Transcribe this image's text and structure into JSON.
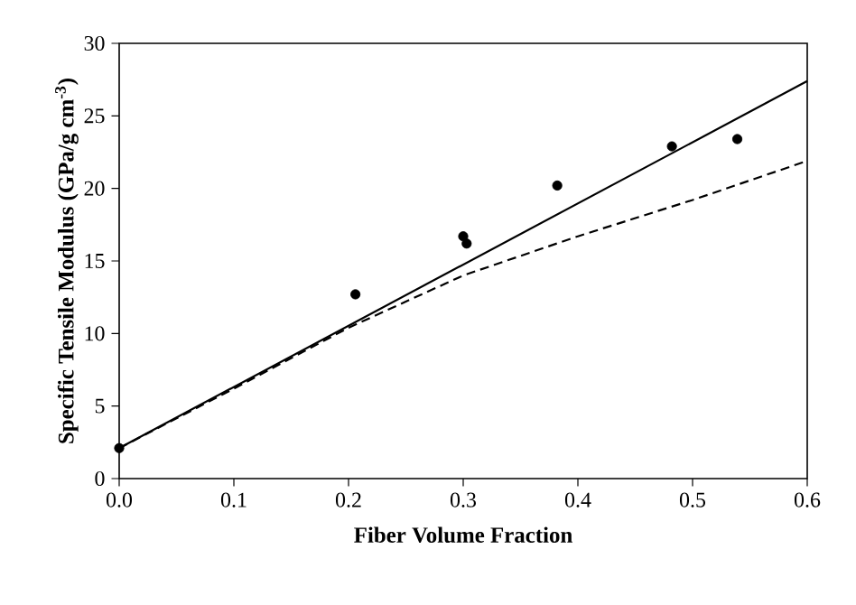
{
  "chart_data": {
    "type": "line",
    "xlabel": "Fiber Volume Fraction",
    "ylabel": "Specific Tensile Modulus (GPa/g cm$^{-3}$)",
    "xlim": [
      0,
      0.6
    ],
    "ylim": [
      0,
      30
    ],
    "xticks": [
      {
        "value": 0,
        "label": "0.0"
      },
      0.1,
      0.2,
      0.3,
      0.4,
      0.5,
      0.6
    ],
    "yticks": [
      0,
      5,
      10,
      15,
      20,
      25,
      30
    ],
    "grid": false,
    "series": [
      {
        "type": "scatter",
        "color": "#000000",
        "marker": "circle",
        "x": [
          0,
          0.206,
          0.3,
          0.303,
          0.382,
          0.482,
          0.539
        ],
        "values": [
          2.1,
          12.7,
          16.7,
          16.2,
          20.2,
          22.9,
          23.4
        ]
      },
      {
        "color": "#000000",
        "line_style": "solid",
        "marker": "none",
        "x": [
          0,
          0.6
        ],
        "values": [
          2.1,
          27.4
        ]
      },
      {
        "color": "#000000",
        "line_style": "dashed",
        "marker": "none",
        "x": [
          0,
          0.1,
          0.2,
          0.3,
          0.4,
          0.5,
          0.6
        ],
        "values": [
          2.1,
          6.2,
          10.4,
          14.0,
          16.7,
          19.2,
          21.9
        ]
      }
    ]
  }
}
